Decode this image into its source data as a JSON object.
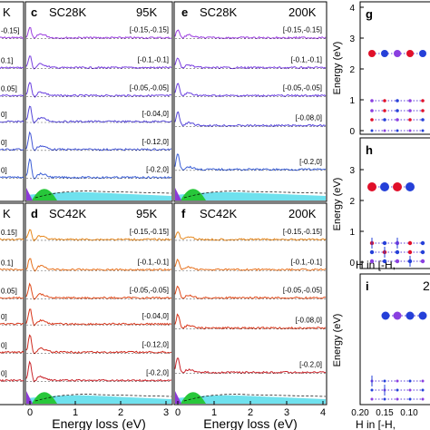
{
  "panels": {
    "c": {
      "letter": "c",
      "sample": "SC28K",
      "temp": "95K"
    },
    "e": {
      "letter": "e",
      "sample": "SC28K",
      "temp": "200K"
    },
    "d": {
      "letter": "d",
      "sample": "SC42K",
      "temp": "95K"
    },
    "f": {
      "letter": "f",
      "sample": "SC42K",
      "temp": "200K"
    },
    "a_partial": {
      "letter_suffix": "K"
    },
    "b_partial": {
      "letter_suffix": "K"
    }
  },
  "q_labels_row1_c": [
    "[-0.15,-0.15]",
    "[-0.1,-0.1]",
    "[-0.05,-0.05]",
    "[-0.04,0]",
    "[-0.12,0]",
    "[-0.2,0]"
  ],
  "q_labels_row1_e": [
    "[-0.15,-0.15]",
    "[-0.1,-0.1]",
    "[-0.05,-0.05]",
    "[-0.08,0]",
    "[-0.2,0]"
  ],
  "q_labels_row2_d": [
    "[-0.15,-0.15]",
    "[-0.1,-0.1]",
    "[-0.05,-0.05]",
    "[-0.04,0]",
    "[-0.12,0]",
    "[-0.2,0]"
  ],
  "q_labels_row2_f": [
    "[-0.15,-0.15]",
    "[-0.1,-0.1]",
    "[-0.05,-0.05]",
    "[-0.08,0]",
    "[-0.2,0]"
  ],
  "left_partial_labels_row1": [
    "-0.15]",
    "0.1]",
    "0.05]",
    "0]",
    "0]",
    "0]"
  ],
  "left_partial_labels_row2": [
    "0.15]",
    "0.1]",
    "0.05]",
    "0]",
    "0]",
    "0]"
  ],
  "x_axis": {
    "label": "Energy loss (eV)",
    "ticks_c": [
      "0",
      "1",
      "2",
      "3"
    ],
    "ticks_e": [
      "0",
      "1",
      "2",
      "3",
      "4"
    ]
  },
  "right_panels": {
    "g": {
      "letter": "g"
    },
    "h": {
      "letter": "h"
    },
    "i": {
      "letter": "i"
    },
    "ylabel": "Energy (eV)",
    "xlabel": "H in [-H,",
    "ticks_g": [
      "4",
      "3",
      "2",
      "1",
      "0"
    ],
    "ticks_h": [
      "3",
      "2",
      "1",
      "0"
    ],
    "ticks_i": [
      "2"
    ],
    "x_ticks": [
      "0.20",
      "0.15",
      "0.10",
      "0.05"
    ],
    "partial_tick_g": "2",
    "partial_tick_i": "2"
  },
  "colors": {
    "row1": [
      "#9c3fe0",
      "#7a3fe0",
      "#6a40e0",
      "#5546d8",
      "#4456d6",
      "#3b5fd6"
    ],
    "row2": [
      "#e8891e",
      "#e6701c",
      "#e04a1a",
      "#d9361a",
      "#cf2a1e",
      "#c9232a"
    ],
    "cyan_fill": "#6fe1ee",
    "green_fill": "#27c73a",
    "purple_fill": "#8d3ad8",
    "red_dot": "#e0102a",
    "blue_dot": "#2540d8",
    "purple_dot": "#8a3fe0"
  }
}
